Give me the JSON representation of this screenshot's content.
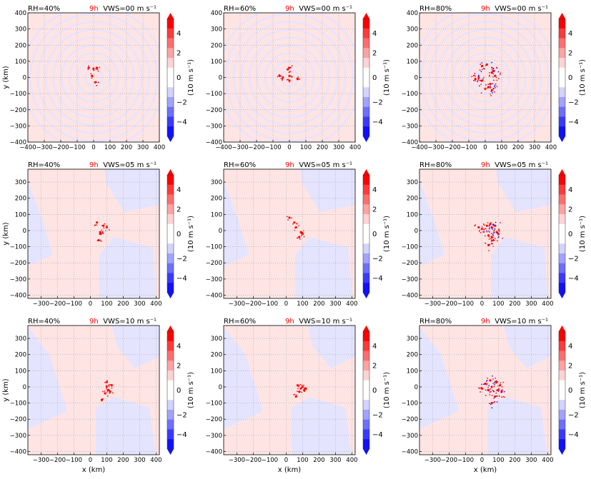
{
  "figure": {
    "xlabel": "x (km)",
    "ylabel": "y (km)",
    "colorbar_label": "(10 m s⁻¹)",
    "colorbar_ticks": [
      "4",
      "2",
      "0",
      "−2",
      "−4"
    ],
    "time_label": "9h",
    "colors": {
      "red_strong": "#ff0000",
      "red_light": "#ffe4e4",
      "blue_strong": "#1010ff",
      "blue_light": "#e4e4ff",
      "time_label": "#ff0000"
    }
  },
  "chart_data": [
    {
      "type": "heatmap",
      "rh": "RH=40%",
      "time": "9h",
      "vws": "VWS=00 m s⁻¹",
      "xlim": [
        -400,
        400
      ],
      "ylim": [
        -400,
        400
      ],
      "xticks": [
        -400,
        -300,
        -200,
        -100,
        0,
        100,
        200,
        300,
        400
      ],
      "yticks": [
        -400,
        -300,
        -200,
        -100,
        0,
        100,
        200,
        300,
        400
      ],
      "grid": true,
      "colorbar_range": [
        -5,
        5
      ],
      "convective_cells": [
        [
          20,
          60
        ],
        [
          -10,
          10
        ],
        [
          0,
          55
        ],
        [
          10,
          -30
        ],
        [
          -30,
          60
        ]
      ]
    },
    {
      "type": "heatmap",
      "rh": "RH=60%",
      "time": "9h",
      "vws": "VWS=00 m s⁻¹",
      "xlim": [
        -400,
        400
      ],
      "ylim": [
        -400,
        400
      ],
      "xticks": [
        -400,
        -300,
        -200,
        -100,
        0,
        100,
        200,
        300,
        400
      ],
      "yticks": [
        -400,
        -300,
        -200,
        -100,
        0,
        100,
        200,
        300,
        400
      ],
      "grid": true,
      "colorbar_range": [
        -5,
        5
      ],
      "convective_cells": [
        [
          0,
          60
        ],
        [
          -40,
          0
        ],
        [
          -10,
          50
        ],
        [
          0,
          -20
        ],
        [
          50,
          -10
        ],
        [
          -60,
          10
        ],
        [
          0,
          10
        ]
      ]
    },
    {
      "type": "heatmap",
      "rh": "RH=80%",
      "time": "9h",
      "vws": "VWS=00 m s⁻¹",
      "xlim": [
        -400,
        400
      ],
      "ylim": [
        -400,
        400
      ],
      "xticks": [
        -400,
        -300,
        -200,
        -100,
        0,
        100,
        200,
        300,
        400
      ],
      "yticks": [
        -400,
        -300,
        -200,
        -100,
        0,
        100,
        200,
        300,
        400
      ],
      "grid": true,
      "colorbar_range": [
        -5,
        5
      ],
      "convective_cells": [
        [
          -60,
          -10
        ],
        [
          -40,
          0
        ],
        [
          40,
          30
        ],
        [
          50,
          40
        ],
        [
          20,
          -60
        ],
        [
          40,
          -80
        ],
        [
          0,
          -70
        ],
        [
          -20,
          -20
        ],
        [
          10,
          80
        ],
        [
          -20,
          70
        ],
        [
          60,
          10
        ],
        [
          30,
          -40
        ]
      ]
    },
    {
      "type": "heatmap",
      "rh": "RH=40%",
      "time": "9h",
      "vws": "VWS=05 m s⁻¹",
      "xlim": [
        -380,
        420
      ],
      "ylim": [
        -420,
        380
      ],
      "xticks": [
        -300,
        -200,
        -100,
        0,
        100,
        200,
        300,
        400
      ],
      "yticks": [
        -400,
        -300,
        -200,
        -100,
        0,
        100,
        200,
        300
      ],
      "grid": true,
      "colorbar_range": [
        -5,
        5
      ],
      "convective_cells": [
        [
          60,
          -10
        ],
        [
          50,
          -60
        ],
        [
          60,
          -20
        ],
        [
          40,
          50
        ],
        [
          100,
          20
        ],
        [
          80,
          30
        ]
      ]
    },
    {
      "type": "heatmap",
      "rh": "RH=60%",
      "time": "9h",
      "vws": "VWS=05 m s⁻¹",
      "xlim": [
        -380,
        420
      ],
      "ylim": [
        -420,
        380
      ],
      "xticks": [
        -300,
        -200,
        -100,
        0,
        100,
        200,
        300,
        400
      ],
      "yticks": [
        -400,
        -300,
        -200,
        -100,
        0,
        100,
        200,
        300
      ],
      "grid": true,
      "colorbar_range": [
        -5,
        5
      ],
      "convective_cells": [
        [
          90,
          -10
        ],
        [
          100,
          -20
        ],
        [
          80,
          -40
        ],
        [
          50,
          50
        ],
        [
          20,
          80
        ],
        [
          60,
          20
        ]
      ]
    },
    {
      "type": "heatmap",
      "rh": "RH=80%",
      "time": "9h",
      "vws": "VWS=05 m s⁻¹",
      "xlim": [
        -380,
        420
      ],
      "ylim": [
        -420,
        380
      ],
      "xticks": [
        -300,
        -200,
        -100,
        0,
        100,
        200,
        300,
        400
      ],
      "yticks": [
        -400,
        -300,
        -200,
        -100,
        0,
        100,
        200,
        300
      ],
      "grid": true,
      "colorbar_range": [
        -5,
        5
      ],
      "convective_cells": [
        [
          30,
          30
        ],
        [
          60,
          20
        ],
        [
          90,
          -10
        ],
        [
          100,
          -20
        ],
        [
          40,
          -30
        ],
        [
          70,
          -60
        ],
        [
          40,
          -90
        ],
        [
          0,
          10
        ],
        [
          -20,
          20
        ],
        [
          80,
          30
        ],
        [
          60,
          -40
        ],
        [
          50,
          40
        ]
      ]
    },
    {
      "type": "heatmap",
      "rh": "RH=40%",
      "time": "9h",
      "vws": "VWS=10 m s⁻¹",
      "xlim": [
        -380,
        420
      ],
      "ylim": [
        -420,
        380
      ],
      "xticks": [
        -300,
        -200,
        -100,
        0,
        100,
        200,
        300,
        400
      ],
      "yticks": [
        -400,
        -300,
        -200,
        -100,
        0,
        100,
        200,
        300
      ],
      "grid": true,
      "colorbar_range": [
        -5,
        5
      ],
      "convective_cells": [
        [
          100,
          0
        ],
        [
          110,
          -20
        ],
        [
          90,
          -40
        ],
        [
          130,
          10
        ],
        [
          100,
          30
        ],
        [
          70,
          -80
        ],
        [
          120,
          -30
        ]
      ]
    },
    {
      "type": "heatmap",
      "rh": "RH=60%",
      "time": "9h",
      "vws": "VWS=10 m s⁻¹",
      "xlim": [
        -380,
        420
      ],
      "ylim": [
        -420,
        380
      ],
      "xticks": [
        -300,
        -200,
        -100,
        0,
        100,
        200,
        300,
        400
      ],
      "yticks": [
        -400,
        -300,
        -200,
        -100,
        0,
        100,
        200,
        300
      ],
      "grid": true,
      "colorbar_range": [
        -5,
        5
      ],
      "convective_cells": [
        [
          70,
          10
        ],
        [
          90,
          -10
        ],
        [
          110,
          -20
        ],
        [
          100,
          0
        ],
        [
          80,
          -30
        ],
        [
          120,
          -10
        ],
        [
          60,
          -60
        ]
      ]
    },
    {
      "type": "heatmap",
      "rh": "RH=80%",
      "time": "9h",
      "vws": "VWS=10 m s⁻¹",
      "xlim": [
        -380,
        420
      ],
      "ylim": [
        -420,
        380
      ],
      "xticks": [
        -300,
        -200,
        -100,
        0,
        100,
        200,
        300,
        400
      ],
      "yticks": [
        -400,
        -300,
        -200,
        -100,
        0,
        100,
        200,
        300
      ],
      "grid": true,
      "colorbar_range": [
        -5,
        5
      ],
      "convective_cells": [
        [
          20,
          20
        ],
        [
          60,
          0
        ],
        [
          100,
          -20
        ],
        [
          110,
          10
        ],
        [
          40,
          -20
        ],
        [
          80,
          -60
        ],
        [
          60,
          -100
        ],
        [
          90,
          30
        ],
        [
          50,
          40
        ],
        [
          0,
          -10
        ],
        [
          120,
          -30
        ]
      ]
    }
  ]
}
